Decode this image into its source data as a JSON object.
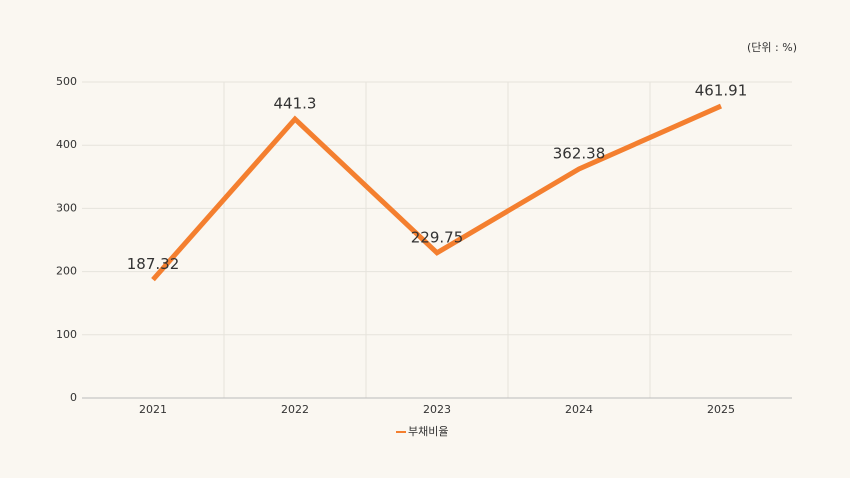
{
  "chart_data": {
    "type": "line",
    "unit_note": "(단위 : %)",
    "categories": [
      "2021",
      "2022",
      "2023",
      "2024",
      "2025"
    ],
    "series": [
      {
        "name": "부채비율",
        "color": "#f47f2f",
        "values": [
          187.32,
          441.3,
          229.75,
          362.38,
          461.91
        ]
      }
    ],
    "ylim": [
      0,
      500
    ],
    "yticks": [
      0,
      100,
      200,
      300,
      400,
      500
    ],
    "grid": true,
    "legend": "bottom"
  }
}
